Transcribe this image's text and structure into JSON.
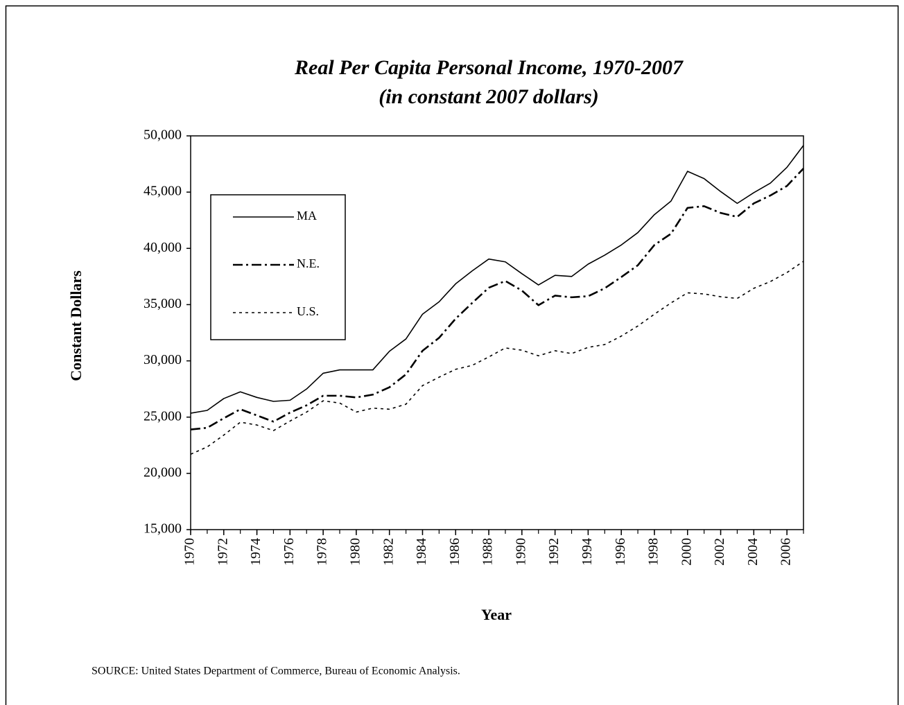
{
  "chart_data": {
    "type": "line",
    "title": "Real Per Capita Personal Income, 1970-2007",
    "subtitle": "(in constant 2007 dollars)",
    "x_label": "Year",
    "y_label": "Constant Dollars",
    "source": "SOURCE:  United States Department of Commerce, Bureau of Economic Analysis.",
    "x": [
      1970,
      1971,
      1972,
      1973,
      1974,
      1975,
      1976,
      1977,
      1978,
      1979,
      1980,
      1981,
      1982,
      1983,
      1984,
      1985,
      1986,
      1987,
      1988,
      1989,
      1990,
      1991,
      1992,
      1993,
      1994,
      1995,
      1996,
      1997,
      1998,
      1999,
      2000,
      2001,
      2002,
      2003,
      2004,
      2005,
      2006,
      2007
    ],
    "xlim": [
      1970,
      2007
    ],
    "xticks": [
      1970,
      1972,
      1974,
      1976,
      1978,
      1980,
      1982,
      1984,
      1986,
      1988,
      1990,
      1992,
      1994,
      1996,
      1998,
      2000,
      2002,
      2004,
      2006
    ],
    "ylim": [
      15000,
      50000
    ],
    "yticks": [
      {
        "value": 15000,
        "label": "15,000"
      },
      {
        "value": 20000,
        "label": "20,000"
      },
      {
        "value": 25000,
        "label": "25,000"
      },
      {
        "value": 30000,
        "label": "30,000"
      },
      {
        "value": 35000,
        "label": "35,000"
      },
      {
        "value": 40000,
        "label": "40,000"
      },
      {
        "value": 45000,
        "label": "45,000"
      },
      {
        "value": 50000,
        "label": "50,000"
      }
    ],
    "grid": false,
    "legend": "upper left",
    "series": [
      {
        "name": "MA",
        "color": "#000000",
        "line_style": "solid",
        "values": [
          25350,
          25600,
          26650,
          27250,
          26750,
          26400,
          26500,
          27500,
          28900,
          29200,
          29200,
          29200,
          30850,
          31950,
          34150,
          35250,
          36850,
          38000,
          39050,
          38800,
          37750,
          36750,
          37600,
          37500,
          38600,
          39400,
          40300,
          41400,
          43000,
          44200,
          46850,
          46200,
          45050,
          44000,
          44950,
          45800,
          47200,
          49150
        ]
      },
      {
        "name": "N.E.",
        "color": "#000000",
        "line_style": "dashdot",
        "values": [
          23900,
          24050,
          24900,
          25700,
          25150,
          24600,
          25400,
          26050,
          26900,
          26900,
          26750,
          27000,
          27650,
          28800,
          30900,
          32050,
          33750,
          35150,
          36500,
          37100,
          36250,
          34950,
          35800,
          35650,
          35750,
          36450,
          37450,
          38500,
          40300,
          41300,
          43600,
          43750,
          43150,
          42800,
          44000,
          44700,
          45550,
          47100
        ]
      },
      {
        "name": "U.S.",
        "color": "#000000",
        "line_style": "dotted",
        "values": [
          21700,
          22350,
          23400,
          24550,
          24300,
          23800,
          24650,
          25450,
          26450,
          26250,
          25450,
          25800,
          25700,
          26150,
          27800,
          28550,
          29250,
          29600,
          30350,
          31150,
          30950,
          30450,
          30900,
          30650,
          31200,
          31450,
          32200,
          33100,
          34150,
          35150,
          36050,
          35950,
          35700,
          35550,
          36450,
          37050,
          37850,
          38850
        ]
      }
    ]
  }
}
